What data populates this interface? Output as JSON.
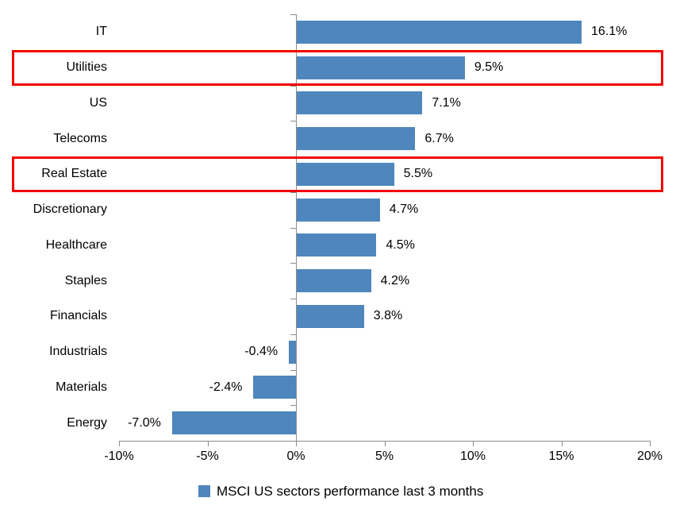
{
  "chart_data": {
    "type": "bar",
    "orientation": "horizontal",
    "title": "",
    "categories": [
      "IT",
      "Utilities",
      "US",
      "Telecoms",
      "Real Estate",
      "Discretionary",
      "Healthcare",
      "Staples",
      "Financials",
      "Industrials",
      "Materials",
      "Energy"
    ],
    "values": [
      16.1,
      9.5,
      7.1,
      6.7,
      5.5,
      4.7,
      4.5,
      4.2,
      3.8,
      -0.4,
      -2.4,
      -7.0
    ],
    "data_labels": [
      "16.1%",
      "9.5%",
      "7.1%",
      "6.7%",
      "5.5%",
      "4.7%",
      "4.5%",
      "4.2%",
      "3.8%",
      "-0.4%",
      "-2.4%",
      "-7.0%"
    ],
    "x_tick_labels": [
      "-10%",
      "-5%",
      "0%",
      "5%",
      "10%",
      "15%",
      "20%"
    ],
    "xlim": [
      -10,
      20
    ],
    "grid": false,
    "legend": "MSCI US sectors performance last 3 months",
    "legend_position": "bottom",
    "highlighted_categories": [
      "Utilities",
      "Real Estate"
    ],
    "colors": {
      "bar": "#4e86bd",
      "highlight_box": "#f20000",
      "axis": "#8c8c8c",
      "text": "#000000",
      "background": "#ffffff"
    }
  }
}
